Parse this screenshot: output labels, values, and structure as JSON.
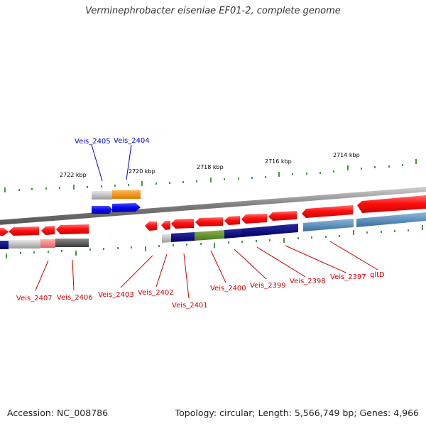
{
  "title": "Verminephrobacter eiseniae EF01-2, complete genome",
  "footer": {
    "accession": "Accession: NC_008786",
    "stats": "Topology: circular; Length: 5,566,749 bp; Genes: 4,966"
  },
  "scale_labels": [
    "2722 kbp",
    "2720 kbp",
    "2718 kbp",
    "2716 kbp",
    "2714 kbp"
  ],
  "gene_labels_top": [
    "Veis_2405",
    "Veis_2404"
  ],
  "gene_labels_bottom": [
    "Veis_2407",
    "Veis_2406",
    "Veis_2403",
    "Veis_2402",
    "Veis_2401",
    "Veis_2400",
    "Veis_2399",
    "Veis_2398",
    "Veis_2397",
    "gltD"
  ],
  "colors": {
    "top_label": "#0000cc",
    "bottom_label": "#cc0000",
    "tick": "#1a7a1a",
    "backbone": "#808080",
    "cds_arrow": "#ff1a1a",
    "forward_cds": "#1010ee",
    "orange_feature": "#ff8c00",
    "navy_feature": "#000080",
    "olive_feature": "#5a8a20",
    "steelblue_feature": "#4682b4",
    "gray_feature": "#a9a9a9"
  }
}
